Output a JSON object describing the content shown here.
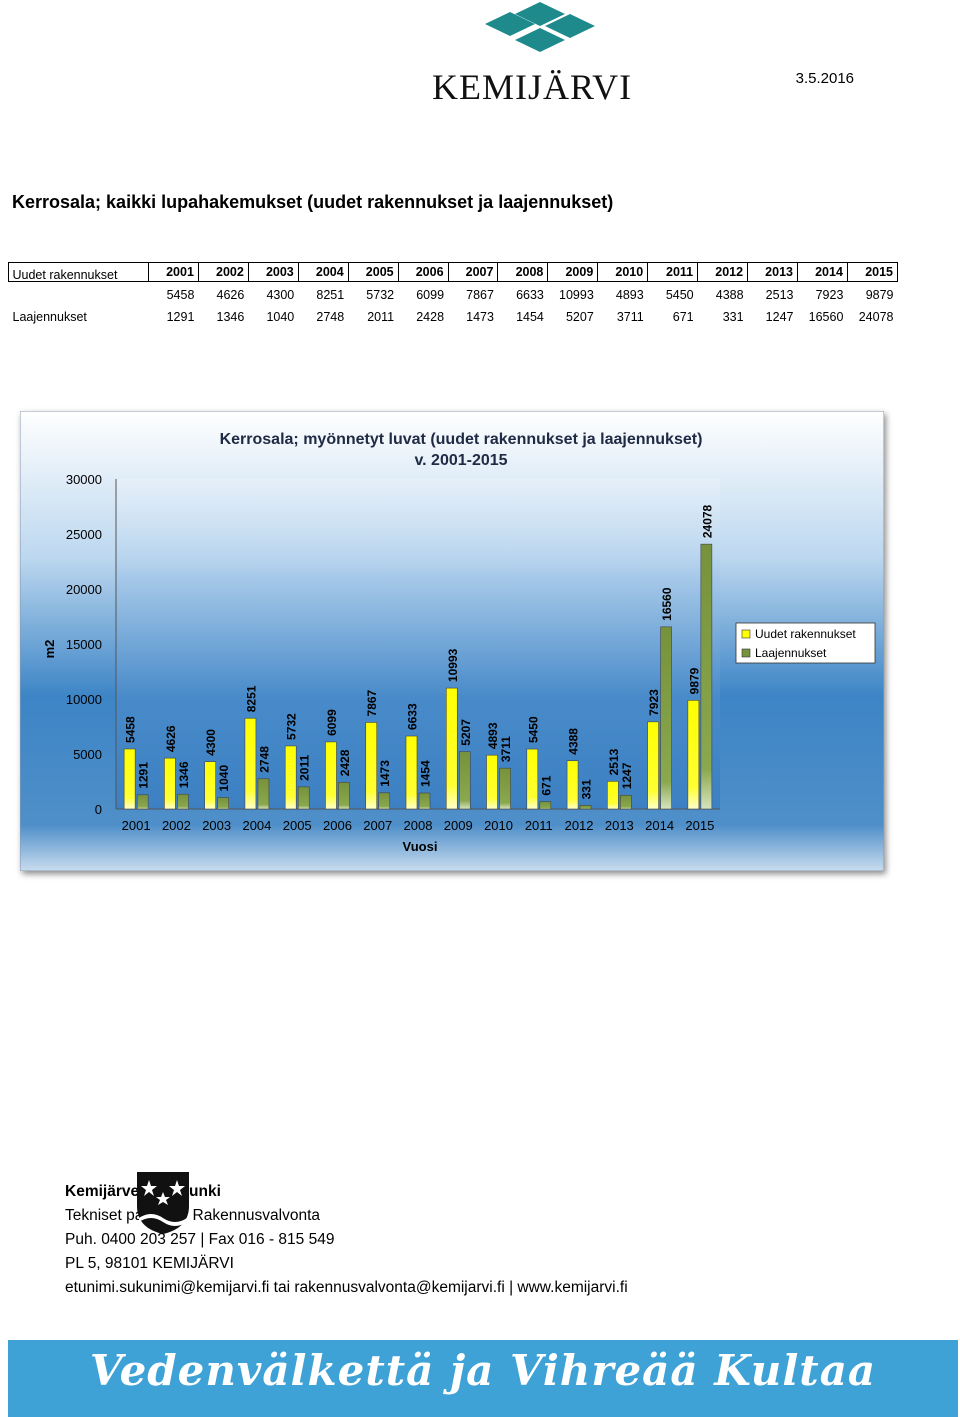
{
  "header": {
    "logo_text": "KEMIJÄRVI",
    "date": "3.5.2016"
  },
  "page_title": "Kerrosala; kaikki lupahakemukset (uudet rakennukset ja laajennukset)",
  "table": {
    "years": [
      "2001",
      "2002",
      "2003",
      "2004",
      "2005",
      "2006",
      "2007",
      "2008",
      "2009",
      "2010",
      "2011",
      "2012",
      "2013",
      "2014",
      "2015"
    ],
    "rows": [
      {
        "label": "Uudet rakennukset",
        "values": [
          "5458",
          "4626",
          "4300",
          "8251",
          "5732",
          "6099",
          "7867",
          "6633",
          "10993",
          "4893",
          "5450",
          "4388",
          "2513",
          "7923",
          "9879"
        ]
      },
      {
        "label": "Laajennukset",
        "values": [
          "1291",
          "1346",
          "1040",
          "2748",
          "2011",
          "2428",
          "1473",
          "1454",
          "5207",
          "3711",
          "671",
          "331",
          "1247",
          "16560",
          "24078"
        ]
      }
    ]
  },
  "chart_data": {
    "type": "bar",
    "title": "Kerrosala; myönnetyt luvat (uudet rakennukset ja laajennukset)",
    "subtitle": "v. 2001-2015",
    "xlabel": "Vuosi",
    "ylabel": "m2",
    "ylim": [
      0,
      30000
    ],
    "yticks": [
      "0",
      "5000",
      "10000",
      "15000",
      "20000",
      "25000",
      "30000"
    ],
    "legend_position": "right",
    "categories": [
      "2001",
      "2002",
      "2003",
      "2004",
      "2005",
      "2006",
      "2007",
      "2008",
      "2009",
      "2010",
      "2011",
      "2012",
      "2013",
      "2014",
      "2015"
    ],
    "series": [
      {
        "name": "Uudet rakennukset",
        "color": "#ffff00",
        "values": [
          5458,
          4626,
          4300,
          8251,
          5732,
          6099,
          7867,
          6633,
          10993,
          4893,
          5450,
          4388,
          2513,
          7923,
          9879
        ]
      },
      {
        "name": "Laajennukset",
        "color": "#76923c",
        "values": [
          1291,
          1346,
          1040,
          2748,
          2011,
          2428,
          1473,
          1454,
          5207,
          3711,
          671,
          331,
          1247,
          16560,
          24078
        ]
      }
    ]
  },
  "footer": {
    "org": "Kemijärven kaupunki",
    "dept": "Tekniset palvelut / Rakennusvalvonta",
    "phone": "Puh. 0400 203 257 | Fax 016 - 815 549",
    "address": "PL 5, 98101 KEMIJÄRVI",
    "contact": "etunimi.sukunimi@kemijarvi.fi tai rakennusvalvonta@kemijarvi.fi | www.kemijarvi.fi"
  },
  "banner": {
    "slogan": "Vedenvälkettä ja Vihreää Kultaa",
    "color": "#3ea2d6"
  }
}
